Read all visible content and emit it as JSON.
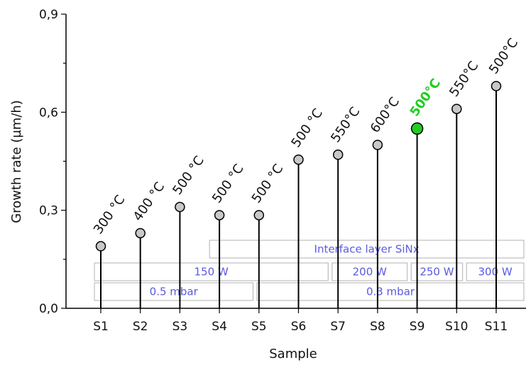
{
  "chart_data": {
    "type": "scatter",
    "style": "stem",
    "xlabel": "Sample",
    "ylabel": "Growth rate (µm/h)",
    "ylim": [
      0,
      0.9
    ],
    "y_ticks": [
      "0,0",
      "0,3",
      "0,6",
      "0,9"
    ],
    "categories": [
      "S1",
      "S2",
      "S3",
      "S4",
      "S5",
      "S6",
      "S7",
      "S8",
      "S9",
      "S10",
      "S11"
    ],
    "values": [
      0.19,
      0.23,
      0.31,
      0.285,
      0.285,
      0.455,
      0.47,
      0.5,
      0.55,
      0.61,
      0.68
    ],
    "point_labels": [
      "300 °C",
      "400 °C",
      "500 °C",
      "500 °C",
      "500 °C",
      "500 °C",
      "550°C",
      "600°C",
      "500°C",
      "550°C",
      "500°C"
    ],
    "highlight_index": 8,
    "colors": {
      "marker": "#c8c8c8",
      "highlight": "#22cc22",
      "band_text": "#5a5ae0"
    },
    "bands": [
      {
        "label": "Interface layer SiNx",
        "from": 3.75,
        "to": 11.75,
        "row": 0
      },
      {
        "label": "150 W",
        "from": 0.75,
        "to": 6.75,
        "row": 1
      },
      {
        "label": "200 W",
        "from": 6.85,
        "to": 8.75,
        "row": 1
      },
      {
        "label": "250 W",
        "from": 8.85,
        "to": 10.15,
        "row": 1
      },
      {
        "label": "300 W",
        "from": 10.25,
        "to": 11.75,
        "row": 1
      },
      {
        "label": "0.5 mbar",
        "from": 0.75,
        "to": 4.85,
        "row": 2
      },
      {
        "label": "0.3 mbar",
        "from": 4.95,
        "to": 11.75,
        "row": 2
      }
    ]
  }
}
